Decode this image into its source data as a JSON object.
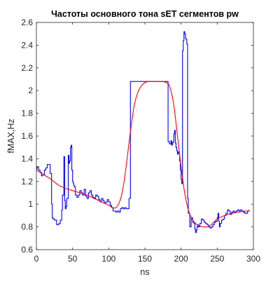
{
  "chart_data": {
    "type": "line",
    "title": "Частоты основного тона sET сегментов pw",
    "xlabel": "ns",
    "ylabel": "fMAX,Hz",
    "xlim": [
      0,
      300
    ],
    "ylim": [
      0.6,
      2.6
    ],
    "xticks": [
      0,
      50,
      100,
      150,
      200,
      250,
      300
    ],
    "xtick_labels": [
      "0",
      "50",
      "100",
      "150",
      "200",
      "250",
      "300"
    ],
    "yticks": [
      0.6,
      0.8,
      1.0,
      1.2,
      1.4,
      1.6,
      1.8,
      2.0,
      2.2,
      2.4,
      2.6
    ],
    "ytick_labels": [
      "0.6",
      "0.8",
      "1",
      "1.2",
      "1.4",
      "1.6",
      "1.8",
      "2",
      "2.2",
      "2.4",
      "2.6"
    ],
    "grid": false,
    "box": true,
    "series": [
      {
        "color": "#0000ff",
        "style": "stairs",
        "x": [
          0,
          1,
          3,
          5,
          7,
          9,
          11,
          13,
          15,
          17,
          19,
          21,
          22,
          23,
          25,
          28,
          31,
          33,
          35,
          36,
          38,
          39,
          40,
          41,
          42,
          44,
          45,
          46,
          47,
          48,
          49,
          50,
          51,
          52,
          53,
          54,
          56,
          58,
          60,
          62,
          64,
          66,
          68,
          70,
          72,
          74,
          76,
          78,
          80,
          82,
          84,
          86,
          88,
          90,
          92,
          94,
          96,
          98,
          100,
          102,
          104,
          106,
          108,
          110,
          112,
          114,
          116,
          118,
          120,
          122,
          124,
          126,
          128,
          130,
          150,
          160,
          180,
          182,
          184,
          186,
          187,
          188,
          189,
          190,
          191,
          192,
          193,
          194,
          195,
          196,
          197,
          198,
          199,
          200,
          201,
          202,
          203,
          204,
          205,
          206,
          207,
          208,
          209,
          210,
          212,
          214,
          216,
          218,
          219,
          220,
          221,
          222,
          223,
          224,
          226,
          228,
          230,
          232,
          234,
          236,
          238,
          240,
          242,
          244,
          246,
          248,
          250,
          251,
          252,
          253,
          254,
          256,
          258,
          260,
          262,
          264,
          266,
          268,
          270,
          272,
          274,
          276,
          278,
          280,
          282,
          284,
          286,
          288,
          290,
          292,
          294
        ],
        "y": [
          1.31,
          1.33,
          1.3,
          1.28,
          1.25,
          1.26,
          1.3,
          1.32,
          1.35,
          1.35,
          1.27,
          1.0,
          0.88,
          0.87,
          0.86,
          0.82,
          0.83,
          0.86,
          0.95,
          1.08,
          1.42,
          1.03,
          0.96,
          0.98,
          1.05,
          1.43,
          1.36,
          1.38,
          1.5,
          1.52,
          1.3,
          1.2,
          1.18,
          1.16,
          1.15,
          1.08,
          1.06,
          1.08,
          1.12,
          1.1,
          1.08,
          1.13,
          1.07,
          1.05,
          1.1,
          1.12,
          1.08,
          1.06,
          1.05,
          1.08,
          1.07,
          1.04,
          1.02,
          1.05,
          1.03,
          1.01,
          1.02,
          1.04,
          1.02,
          0.99,
          0.97,
          0.94,
          0.94,
          0.93,
          0.94,
          0.93,
          0.96,
          0.97,
          0.96,
          0.97,
          0.96,
          0.96,
          1.05,
          2.08,
          2.08,
          2.08,
          2.08,
          1.55,
          1.53,
          1.56,
          1.52,
          1.54,
          1.55,
          1.62,
          1.65,
          1.54,
          1.5,
          1.47,
          1.44,
          1.46,
          1.45,
          1.38,
          1.3,
          1.22,
          1.18,
          2.35,
          2.44,
          2.52,
          2.5,
          2.46,
          2.45,
          2.41,
          1.05,
          0.92,
          0.8,
          0.88,
          0.84,
          0.83,
          0.78,
          0.75,
          0.77,
          0.8,
          0.82,
          0.8,
          0.83,
          0.87,
          0.86,
          0.84,
          0.83,
          0.82,
          0.8,
          0.79,
          0.8,
          0.82,
          0.84,
          0.85,
          0.88,
          0.92,
          0.85,
          0.8,
          0.83,
          0.86,
          0.87,
          0.9,
          0.92,
          0.95,
          0.94,
          0.91,
          0.93,
          0.94,
          0.93,
          0.94,
          0.95,
          0.94,
          0.95,
          0.94,
          0.93,
          0.92,
          0.92,
          0.94,
          0.95
        ]
      },
      {
        "color": "#ff0000",
        "style": "smooth",
        "x": [
          0,
          10,
          20,
          30,
          40,
          50,
          60,
          70,
          80,
          90,
          100,
          105,
          110,
          115,
          120,
          125,
          130,
          135,
          140,
          145,
          150,
          155,
          160,
          170,
          180,
          185,
          190,
          195,
          200,
          205,
          210,
          215,
          220,
          225,
          230,
          235,
          240,
          245,
          250,
          260,
          270,
          280,
          290,
          295
        ],
        "y": [
          1.3,
          1.26,
          1.22,
          1.17,
          1.14,
          1.12,
          1.1,
          1.08,
          1.05,
          1.02,
          0.99,
          0.97,
          0.97,
          1.02,
          1.15,
          1.38,
          1.64,
          1.86,
          1.98,
          2.04,
          2.07,
          2.08,
          2.08,
          2.08,
          2.07,
          2.02,
          1.87,
          1.6,
          1.33,
          1.1,
          0.95,
          0.87,
          0.83,
          0.81,
          0.8,
          0.8,
          0.81,
          0.84,
          0.87,
          0.9,
          0.92,
          0.93,
          0.94,
          0.94
        ]
      }
    ]
  }
}
